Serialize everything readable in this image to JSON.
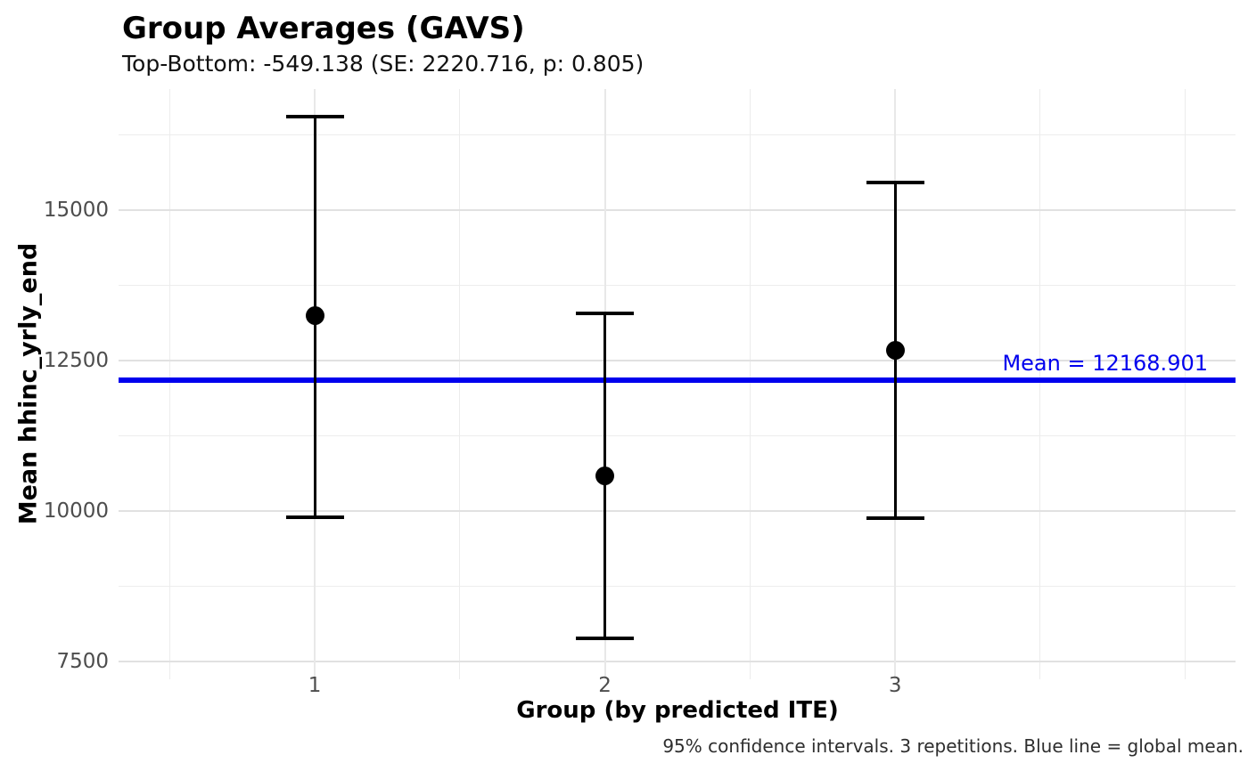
{
  "chart_data": {
    "type": "scatter",
    "subtype": "point-with-error-bars",
    "title": "Group Averages (GAVS)",
    "subtitle": "Top-Bottom: -549.138 (SE: 2220.716, p: 0.805)",
    "xlabel": "Group (by predicted ITE)",
    "ylabel": "Mean hhinc_yrly_end",
    "caption": "95% confidence intervals. 3 repetitions. Blue line = global mean.",
    "groups": [
      {
        "x": 1,
        "label": "1",
        "mean": 13240,
        "ci_low": 9895,
        "ci_high": 16555
      },
      {
        "x": 2,
        "label": "2",
        "mean": 10580,
        "ci_low": 7885,
        "ci_high": 13285
      },
      {
        "x": 3,
        "label": "3",
        "mean": 12675,
        "ci_low": 9880,
        "ci_high": 15460
      }
    ],
    "global_mean": {
      "value": 12168.901,
      "label": "Mean = 12168.901"
    },
    "y_axis": {
      "ticks": [
        15000,
        12500,
        10000,
        7500
      ],
      "minor_ticks": [
        16250,
        13750,
        11250,
        8750
      ],
      "domain": [
        7205,
        17010
      ]
    },
    "x_axis": {
      "ticks": [
        1,
        2,
        3
      ],
      "minor_positions": [
        0.5,
        1.5,
        2.5,
        3.5,
        4.0
      ],
      "domain": [
        0.324,
        4.173
      ]
    },
    "grid": true,
    "legend": false,
    "colors": {
      "point": "#000000",
      "errorbar": "#000000",
      "mean_line": "#0000ee",
      "mean_label": "#0000ee",
      "tick_text": "#4d4d4d",
      "grid_major": "#e1e1e1",
      "grid_minor": "#ededed"
    }
  }
}
